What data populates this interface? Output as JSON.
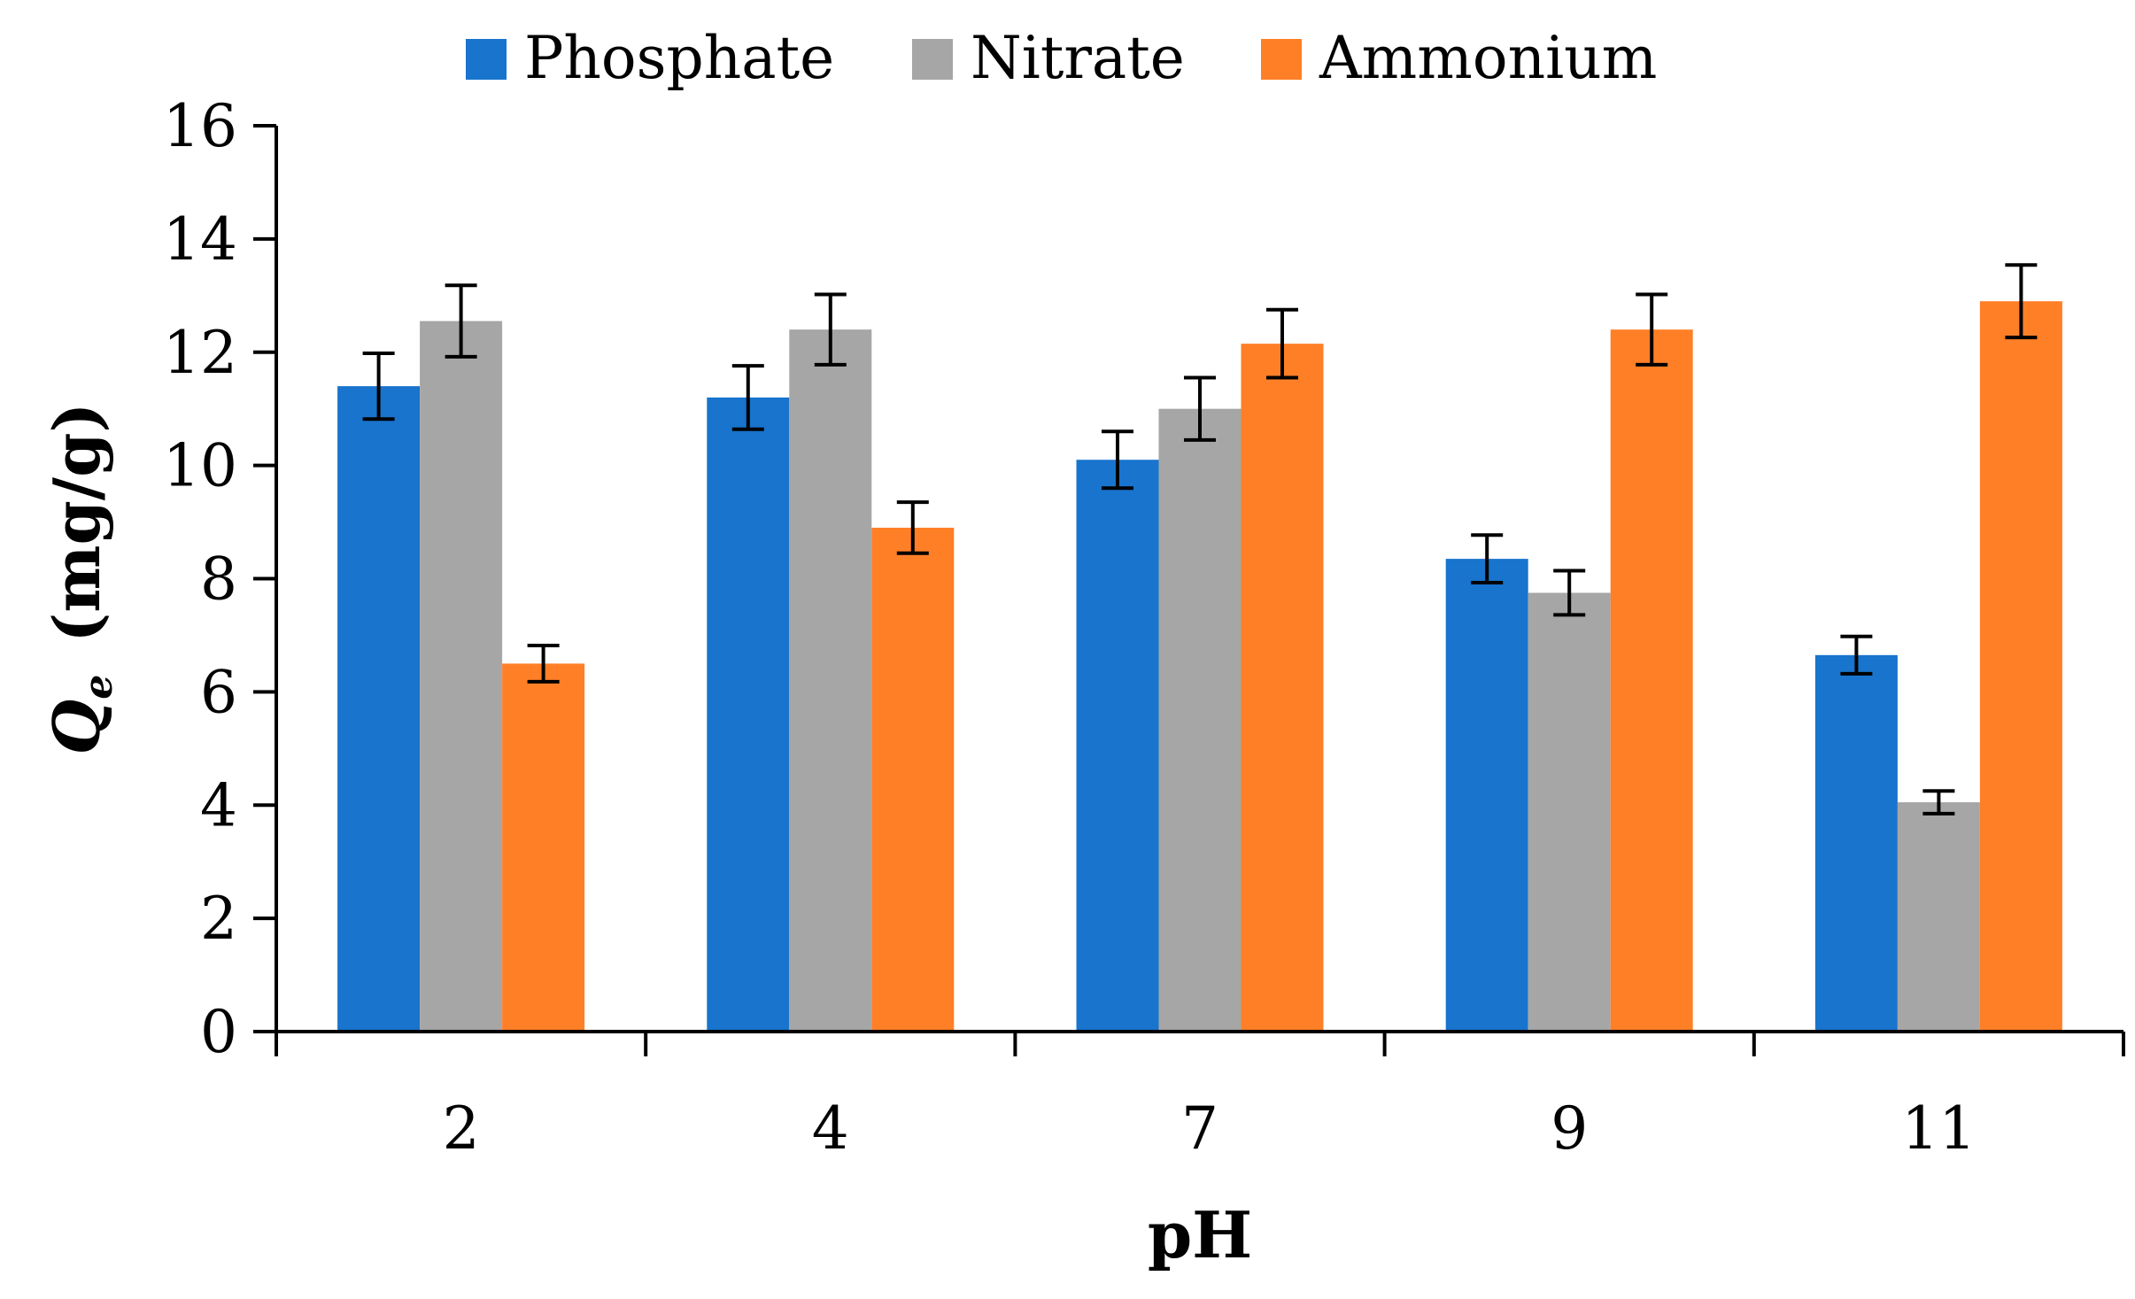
{
  "chart_data": {
    "type": "bar",
    "title": "",
    "xlabel": "pH",
    "ylabel": {
      "main": "Q",
      "subscript": "e",
      "unit": "(mg/g)"
    },
    "categories": [
      "2",
      "4",
      "7",
      "9",
      "11"
    ],
    "ylim": [
      0,
      16
    ],
    "yticks": [
      "0",
      "2",
      "4",
      "6",
      "8",
      "10",
      "12",
      "14",
      "16"
    ],
    "grid": false,
    "legend_position": "top-center",
    "series": [
      {
        "name": "Phosphate",
        "color": "#1874CD",
        "values": [
          11.4,
          11.2,
          10.1,
          8.35,
          6.65
        ],
        "errors": [
          0.58,
          0.56,
          0.5,
          0.42,
          0.33
        ]
      },
      {
        "name": "Nitrate",
        "color": "#A6A6A6",
        "values": [
          12.55,
          12.4,
          11.0,
          7.75,
          4.05
        ],
        "errors": [
          0.63,
          0.62,
          0.55,
          0.39,
          0.2
        ]
      },
      {
        "name": "Ammonium",
        "color": "#FF7F27",
        "values": [
          6.5,
          8.9,
          12.15,
          12.4,
          12.9
        ],
        "errors": [
          0.32,
          0.45,
          0.6,
          0.62,
          0.64
        ]
      }
    ]
  }
}
